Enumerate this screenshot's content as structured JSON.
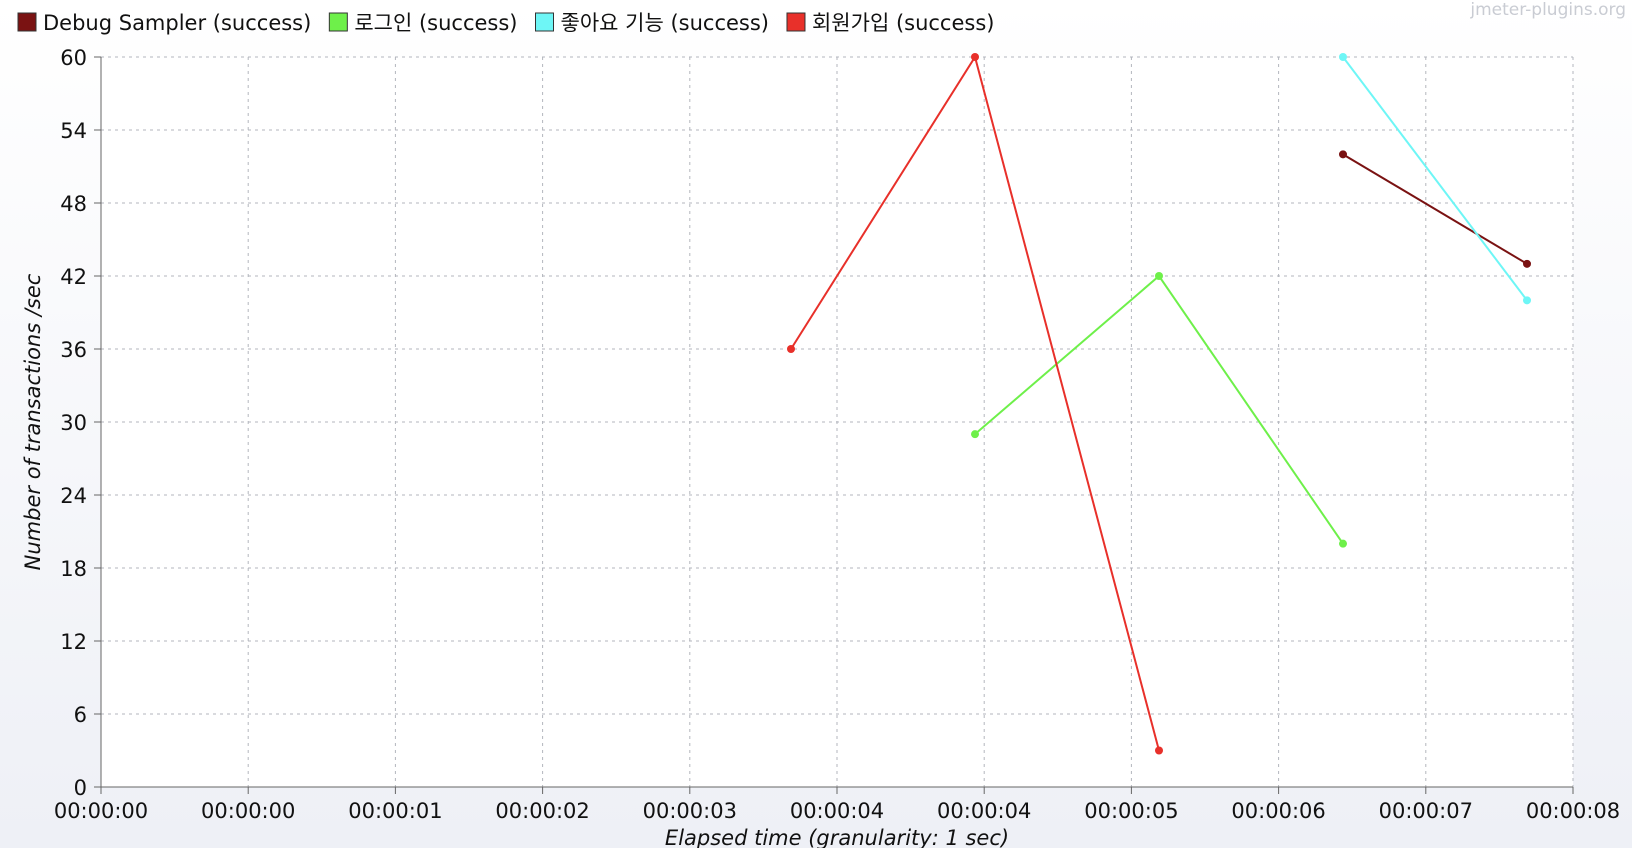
{
  "watermark": "jmeter-plugins.org",
  "chart_data": {
    "type": "line",
    "title": "",
    "xlabel": "Elapsed time (granularity: 1 sec)",
    "ylabel": "Number of transactions /sec",
    "ylim": [
      0,
      60
    ],
    "xlim": [
      0,
      8
    ],
    "y_ticks": [
      0,
      6,
      12,
      18,
      24,
      30,
      36,
      42,
      48,
      54,
      60
    ],
    "x_tick_labels": [
      "00:00:00",
      "00:00:00",
      "00:00:01",
      "00:00:02",
      "00:00:03",
      "00:00:04",
      "00:00:04",
      "00:00:05",
      "00:00:06",
      "00:00:07",
      "00:00:08"
    ],
    "grid": true,
    "legend_position": "top-left",
    "series": [
      {
        "name": "Debug Sampler (success)",
        "color": "#7a1212",
        "points": [
          [
            6.75,
            52
          ],
          [
            7.75,
            43
          ]
        ]
      },
      {
        "name": "로그인 (success)",
        "color": "#6ef04a",
        "points": [
          [
            4.75,
            29
          ],
          [
            5.75,
            42
          ],
          [
            6.75,
            20
          ]
        ]
      },
      {
        "name": "좋아요 기능 (success)",
        "color": "#6ef6f6",
        "points": [
          [
            6.75,
            60
          ],
          [
            7.75,
            40
          ]
        ]
      },
      {
        "name": "회원가입 (success)",
        "color": "#e8302a",
        "points": [
          [
            3.75,
            36
          ],
          [
            4.75,
            60
          ],
          [
            5.75,
            3
          ]
        ]
      }
    ]
  }
}
